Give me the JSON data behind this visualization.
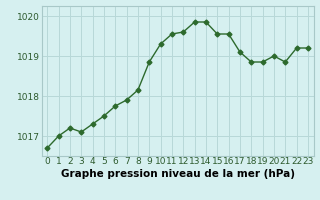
{
  "hours": [
    0,
    1,
    2,
    3,
    4,
    5,
    6,
    7,
    8,
    9,
    10,
    11,
    12,
    13,
    14,
    15,
    16,
    17,
    18,
    19,
    20,
    21,
    22,
    23
  ],
  "pressure": [
    1016.7,
    1017.0,
    1017.2,
    1017.1,
    1017.3,
    1017.5,
    1017.75,
    1017.9,
    1018.15,
    1018.85,
    1019.3,
    1019.55,
    1019.6,
    1019.85,
    1019.85,
    1019.55,
    1019.55,
    1019.1,
    1018.85,
    1018.85,
    1019.0,
    1018.85,
    1019.2,
    1019.2
  ],
  "line_color": "#2d6a2d",
  "marker": "D",
  "marker_size": 2.5,
  "bg_color": "#d6f0f0",
  "grid_color": "#b8d8d8",
  "xlabel": "Graphe pression niveau de la mer (hPa)",
  "xlabel_fontsize": 7.5,
  "ylim": [
    1016.5,
    1020.25
  ],
  "yticks": [
    1017,
    1018,
    1019,
    1020
  ],
  "tick_labelsize": 6.5,
  "line_width": 1.0
}
